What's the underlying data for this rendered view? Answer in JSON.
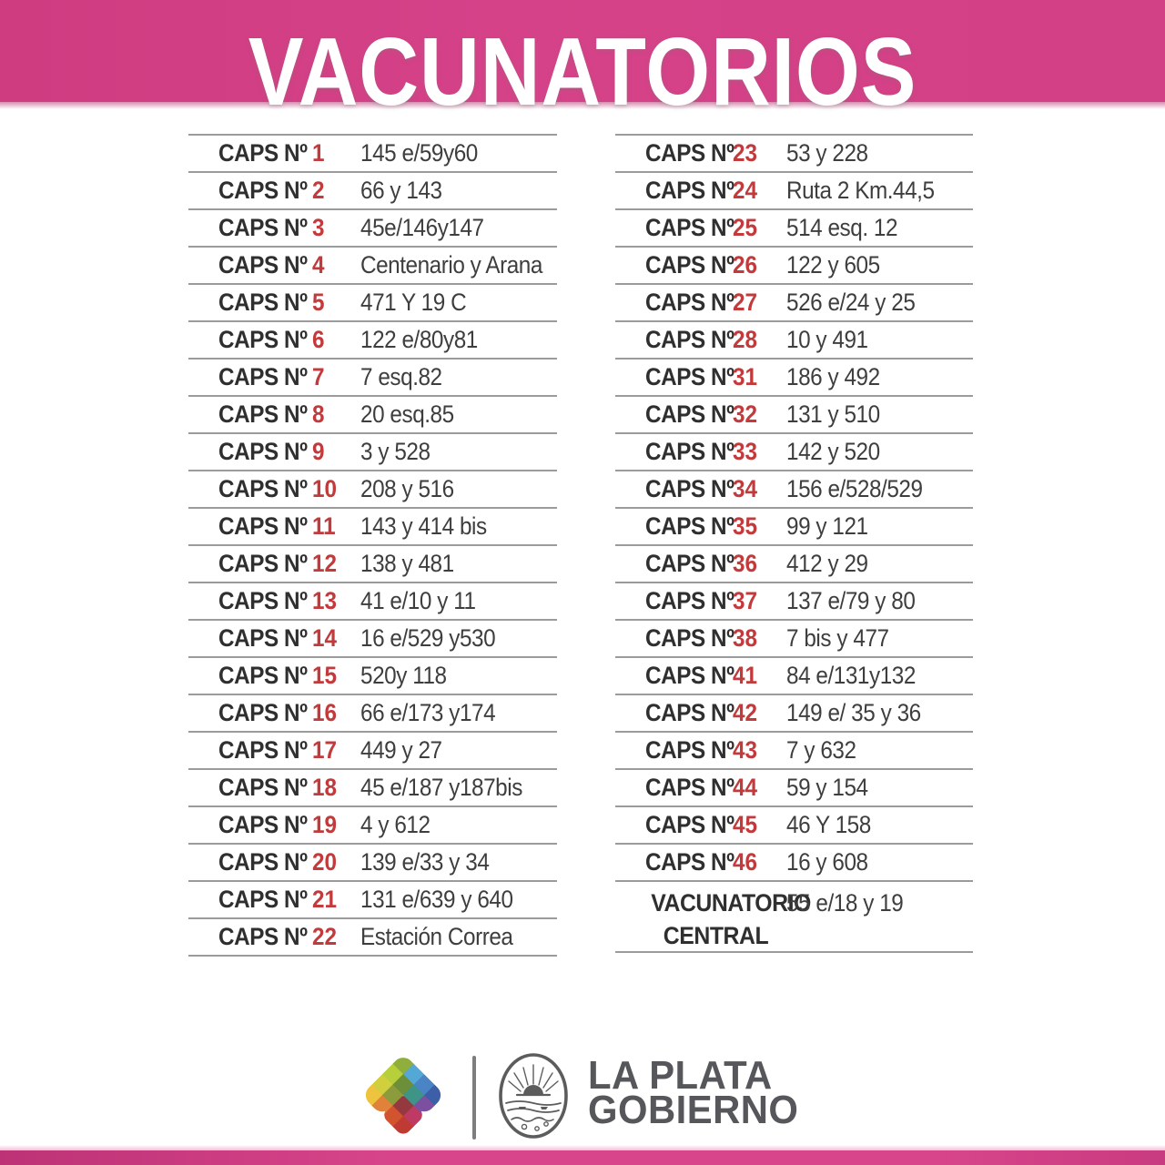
{
  "header": {
    "title": "VACUNATORIOS"
  },
  "table": {
    "left_rows": [
      {
        "label": "CAPS Nº",
        "number": "1",
        "address": "145 e/59y60"
      },
      {
        "label": "CAPS Nº",
        "number": "2",
        "address": "66 y 143"
      },
      {
        "label": "CAPS Nº",
        "number": "3",
        "address": "45e/146y147"
      },
      {
        "label": "CAPS Nº",
        "number": "4",
        "address": "Centenario y Arana"
      },
      {
        "label": "CAPS Nº",
        "number": "5",
        "address": "471 Y 19 C"
      },
      {
        "label": "CAPS Nº",
        "number": "6",
        "address": "122 e/80y81"
      },
      {
        "label": "CAPS Nº",
        "number": "7",
        "address": "7 esq.82"
      },
      {
        "label": "CAPS Nº",
        "number": "8",
        "address": "20 esq.85"
      },
      {
        "label": "CAPS Nº",
        "number": "9",
        "address": "3 y 528"
      },
      {
        "label": "CAPS Nº",
        "number": "10",
        "address": "208 y 516"
      },
      {
        "label": "CAPS Nº",
        "number": "11",
        "address": "143 y 414 bis"
      },
      {
        "label": "CAPS Nº",
        "number": "12",
        "address": "138 y 481"
      },
      {
        "label": "CAPS Nº",
        "number": "13",
        "address": "41 e/10 y 11"
      },
      {
        "label": "CAPS Nº",
        "number": "14",
        "address": "16 e/529 y530"
      },
      {
        "label": "CAPS Nº",
        "number": "15",
        "address": "520y 118"
      },
      {
        "label": "CAPS Nº",
        "number": "16",
        "address": "66 e/173 y174"
      },
      {
        "label": "CAPS Nº",
        "number": "17",
        "address": "449 y 27"
      },
      {
        "label": "CAPS Nº",
        "number": "18",
        "address": "45 e/187 y187bis"
      },
      {
        "label": "CAPS Nº",
        "number": "19",
        "address": "4 y 612"
      },
      {
        "label": "CAPS Nº",
        "number": "20",
        "address": "139 e/33 y 34"
      },
      {
        "label": "CAPS Nº",
        "number": "21",
        "address": "131 e/639 y 640"
      },
      {
        "label": "CAPS Nº",
        "number": "22",
        "address": "Estación Correa"
      }
    ],
    "right_rows": [
      {
        "label": "CAPS Nº",
        "number": "23",
        "address": "53 y 228"
      },
      {
        "label": "CAPS Nº",
        "number": "24",
        "address": "Ruta 2 Km.44,5"
      },
      {
        "label": "CAPS Nº",
        "number": "25",
        "address": "514 esq. 12"
      },
      {
        "label": "CAPS Nº",
        "number": "26",
        "address": "122 y 605"
      },
      {
        "label": "CAPS Nº",
        "number": "27",
        "address": "526 e/24 y 25"
      },
      {
        "label": "CAPS Nº",
        "number": "28",
        "address": "10 y 491"
      },
      {
        "label": "CAPS Nº",
        "number": "31",
        "address": "186 y 492"
      },
      {
        "label": "CAPS Nº",
        "number": "32",
        "address": "131 y 510"
      },
      {
        "label": "CAPS Nº",
        "number": "33",
        "address": "142 y 520"
      },
      {
        "label": "CAPS Nº",
        "number": "34",
        "address": "156 e/528/529"
      },
      {
        "label": "CAPS Nº",
        "number": "35",
        "address": "99 y 121"
      },
      {
        "label": "CAPS Nº",
        "number": "36",
        "address": "412 y 29"
      },
      {
        "label": "CAPS Nº",
        "number": "37",
        "address": "137 e/79 y 80"
      },
      {
        "label": "CAPS Nº",
        "number": "38",
        "address": "7 bis y 477"
      },
      {
        "label": "CAPS Nº",
        "number": "41",
        "address": "84 e/131y132"
      },
      {
        "label": "CAPS Nº",
        "number": "42",
        "address": "149 e/ 35 y 36"
      },
      {
        "label": "CAPS Nº",
        "number": "43",
        "address": "7 y 632"
      },
      {
        "label": "CAPS Nº",
        "number": "44",
        "address": "59 y 154"
      },
      {
        "label": "CAPS Nº",
        "number": "45",
        "address": "46 Y 158"
      },
      {
        "label": "CAPS Nº",
        "number": "46",
        "address": "16 y 608"
      }
    ],
    "central_row": {
      "label_line1": "VACUNATORIO",
      "label_line2": "CENTRAL",
      "address": "55 e/18 y 19"
    }
  },
  "footer": {
    "brand_line1": "LA PLATA",
    "brand_line2": "GOBIERNO",
    "heart_icon": "heart-mosaic-logo",
    "seal_icon": "city-crest-seal"
  },
  "colors": {
    "header_pink": "#d64289",
    "bottom_bar_pink": "#d8458b",
    "number_red": "#c23a3c",
    "label_dark": "#2f2f2f",
    "address_gray": "#3e3e3e",
    "rule_gray": "#9b9b9b",
    "brand_gray": "#56575a",
    "heart_palette": [
      {
        "c": 0,
        "r": 0,
        "hex": "#8fae3c"
      },
      {
        "c": 0,
        "r": 1,
        "hex": "#b6cf3b"
      },
      {
        "c": 0,
        "r": 2,
        "hex": "#d2cf3e"
      },
      {
        "c": 0,
        "r": 3,
        "hex": "#eec43f"
      },
      {
        "c": 1,
        "r": 0,
        "hex": "#54a8d6"
      },
      {
        "c": 2,
        "r": 0,
        "hex": "#4b84c4"
      },
      {
        "c": 3,
        "r": 0,
        "hex": "#3d5fa8"
      },
      {
        "c": 1,
        "r": 1,
        "hex": "#6d8f3a"
      },
      {
        "c": 1,
        "r": 2,
        "hex": "#8c9c3c"
      },
      {
        "c": 2,
        "r": 1,
        "hex": "#3f9488"
      },
      {
        "c": 1,
        "r": 3,
        "hex": "#e0823a"
      },
      {
        "c": 2,
        "r": 2,
        "hex": "#96393f"
      },
      {
        "c": 3,
        "r": 1,
        "hex": "#7d4fa0"
      },
      {
        "c": 2,
        "r": 3,
        "hex": "#d2542f"
      },
      {
        "c": 3,
        "r": 2,
        "hex": "#bf3a62"
      },
      {
        "c": 3,
        "r": 3,
        "hex": "#c03a34"
      }
    ]
  }
}
